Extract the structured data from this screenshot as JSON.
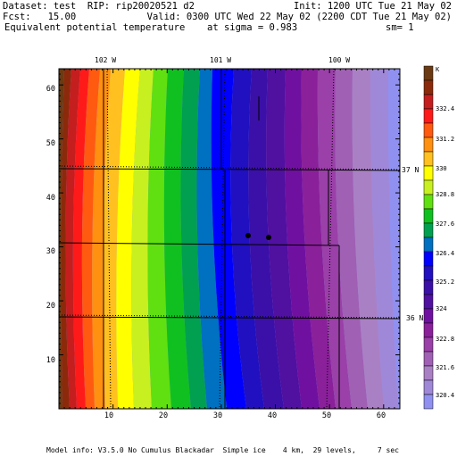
{
  "header": {
    "dataset": "Dataset: test  RIP: rip20020521 d2",
    "init": "Init: 1200 UTC Tue 21 May 02",
    "fcst": "Fcst:   15.00",
    "valid": "Valid: 0300 UTC Wed 22 May 02 (2200 CDT Tue 21 May 02)",
    "field": "Equivalent potential temperature",
    "sigma": "at sigma = 0.983",
    "sm": "sm= 1"
  },
  "map": {
    "lon_labels": [
      "102 W",
      "101 W",
      "100 W"
    ],
    "lat_labels": [
      "37 N",
      "36 N"
    ],
    "y_ticks": [
      "60",
      "50",
      "40",
      "30",
      "20",
      "10"
    ],
    "x_ticks": [
      "10",
      "20",
      "30",
      "40",
      "50",
      "60"
    ]
  },
  "colorbar": {
    "unit": "K",
    "labels": [
      "332.4",
      "331.2",
      "330",
      "328.8",
      "327.6",
      "326.4",
      "325.2",
      "324",
      "322.8",
      "321.6",
      "320.4"
    ],
    "colors": [
      "#6b3a12",
      "#8b2a0a",
      "#c41e1e",
      "#ff1a1a",
      "#ff5a10",
      "#ff9010",
      "#ffc020",
      "#ffff00",
      "#c8f020",
      "#60e010",
      "#10c020",
      "#00a050",
      "#0070c0",
      "#0000ff",
      "#2010c0",
      "#3a10a8",
      "#5010a0",
      "#7010a0",
      "#8a209a",
      "#9a40a8",
      "#a060b4",
      "#aa80c4",
      "#a088d8",
      "#9090f0"
    ]
  },
  "footer": "Model info: V3.5.0 No Cumulus Blackadar  Simple ice    4 km,  29 levels,     7 sec"
}
